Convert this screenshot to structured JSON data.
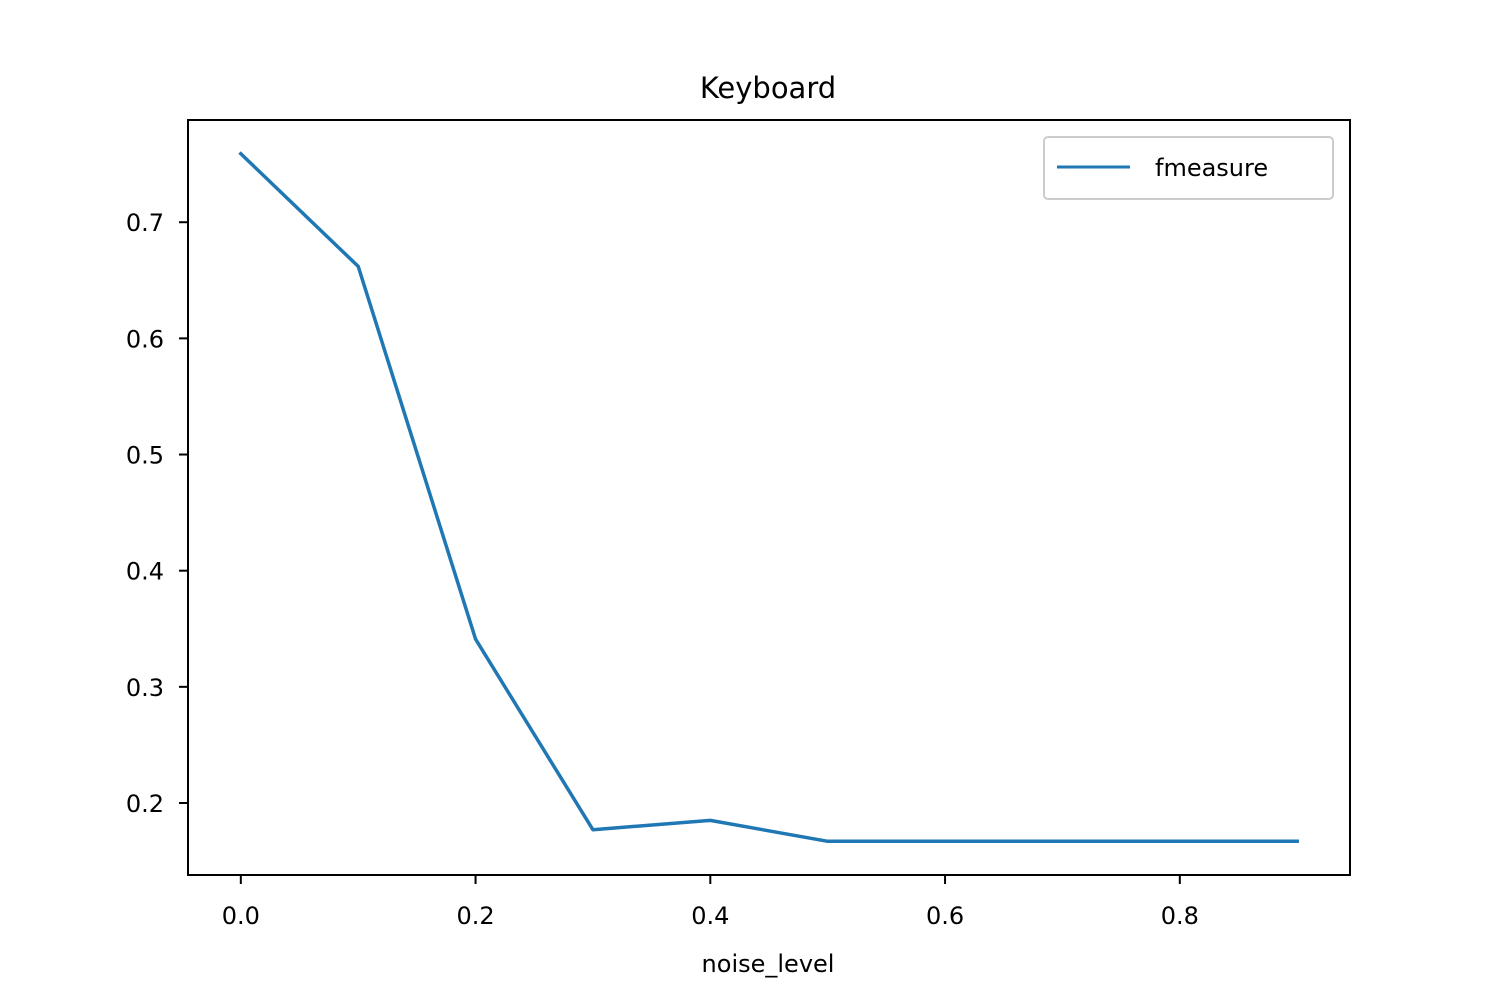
{
  "chart_data": {
    "type": "line",
    "title": "Keyboard",
    "xlabel": "noise_level",
    "ylabel": "",
    "x": [
      0.0,
      0.1,
      0.2,
      0.3,
      0.4,
      0.5,
      0.6,
      0.7,
      0.8,
      0.9
    ],
    "series": [
      {
        "name": "fmeasure",
        "color": "#1f77b4",
        "values": [
          0.759,
          0.662,
          0.341,
          0.177,
          0.185,
          0.167,
          0.167,
          0.167,
          0.167,
          0.167
        ]
      }
    ],
    "xlim": [
      -0.045,
      0.945
    ],
    "ylim": [
      0.138,
      0.788
    ],
    "xticks": [
      0.0,
      0.2,
      0.4,
      0.6,
      0.8
    ],
    "xtick_labels": [
      "0.0",
      "0.2",
      "0.4",
      "0.6",
      "0.8"
    ],
    "yticks": [
      0.2,
      0.3,
      0.4,
      0.5,
      0.6,
      0.7
    ],
    "ytick_labels": [
      "0.2",
      "0.3",
      "0.4",
      "0.5",
      "0.6",
      "0.7"
    ],
    "grid": false,
    "legend": "top-right"
  }
}
